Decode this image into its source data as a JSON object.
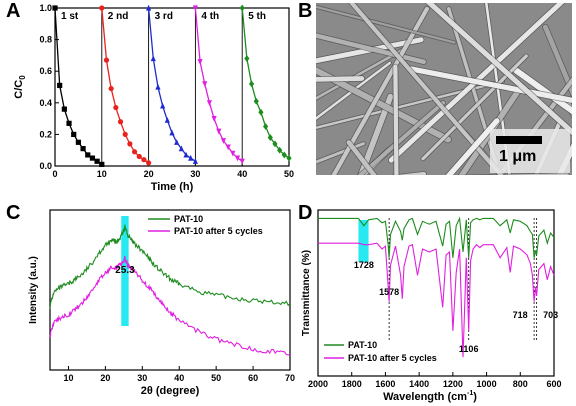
{
  "panels": {
    "a": "A",
    "b": "B",
    "c": "C",
    "d": "D"
  },
  "sem": {
    "scale_label": "1 μm",
    "background": "#8a8a8a"
  },
  "chart_data": [
    {
      "type": "line",
      "panel": "A",
      "xlabel": "Time (h)",
      "ylabel": "C/C",
      "ylabel_sub": "0",
      "xlim": [
        0,
        50
      ],
      "ylim": [
        0,
        1.0
      ],
      "xticks": [
        0,
        10,
        20,
        30,
        40,
        50
      ],
      "yticks": [
        0.0,
        0.2,
        0.4,
        0.6,
        0.8,
        1.0
      ],
      "cycle_boundaries": [
        10,
        20,
        30,
        40
      ],
      "series": [
        {
          "name": "1 st",
          "color": "#000000",
          "marker": "square",
          "x": [
            0,
            1,
            2,
            3,
            4,
            5,
            6,
            7,
            8,
            9,
            10
          ],
          "y": [
            1.0,
            0.51,
            0.36,
            0.27,
            0.2,
            0.15,
            0.11,
            0.07,
            0.05,
            0.03,
            0.01
          ]
        },
        {
          "name": "2 nd",
          "color": "#e8231f",
          "marker": "circle",
          "x": [
            10,
            11,
            12,
            13,
            14,
            15,
            16,
            17,
            18,
            19,
            20
          ],
          "y": [
            1.0,
            0.67,
            0.49,
            0.37,
            0.28,
            0.2,
            0.14,
            0.09,
            0.06,
            0.04,
            0.02
          ]
        },
        {
          "name": "3 rd",
          "color": "#1f2bd0",
          "marker": "triangle",
          "x": [
            20,
            21,
            22,
            23,
            24,
            25,
            26,
            27,
            28,
            29,
            30
          ],
          "y": [
            1.0,
            0.68,
            0.5,
            0.38,
            0.29,
            0.21,
            0.15,
            0.11,
            0.07,
            0.05,
            0.03
          ]
        },
        {
          "name": "4 th",
          "color": "#e020e0",
          "marker": "triangle-down",
          "x": [
            30,
            31,
            32,
            33,
            34,
            35,
            36,
            37,
            38,
            39,
            40
          ],
          "y": [
            1.0,
            0.66,
            0.52,
            0.4,
            0.3,
            0.22,
            0.16,
            0.12,
            0.08,
            0.05,
            0.03
          ]
        },
        {
          "name": "5 th",
          "color": "#1e8c1e",
          "marker": "diamond",
          "x": [
            40,
            41,
            42,
            43,
            44,
            45,
            46,
            47,
            48,
            49,
            50
          ],
          "y": [
            1.0,
            0.68,
            0.52,
            0.41,
            0.34,
            0.25,
            0.18,
            0.14,
            0.1,
            0.07,
            0.05
          ]
        }
      ]
    },
    {
      "type": "line",
      "panel": "C",
      "xlabel": "2θ (degree)",
      "ylabel": "Intensity (a.u.)",
      "xlim": [
        5,
        70
      ],
      "xticks": [
        10,
        20,
        30,
        40,
        50,
        60,
        70
      ],
      "annotation": "25.3",
      "highlight_x": [
        24.3,
        26.3
      ],
      "highlight_color": "#00e5f0",
      "series": [
        {
          "name": "PAT-10",
          "color": "#1e8c1e",
          "x": [
            5,
            6,
            8,
            10,
            12,
            14,
            16,
            18,
            20,
            22,
            23,
            24,
            25,
            25.3,
            26,
            27,
            28,
            30,
            32,
            34,
            36,
            38,
            40,
            45,
            50,
            55,
            60,
            65,
            70
          ],
          "y": [
            0.42,
            0.52,
            0.56,
            0.58,
            0.62,
            0.66,
            0.72,
            0.8,
            0.86,
            0.9,
            0.88,
            0.92,
            0.97,
            1.0,
            0.94,
            0.9,
            0.87,
            0.82,
            0.76,
            0.7,
            0.65,
            0.61,
            0.58,
            0.53,
            0.5,
            0.48,
            0.46,
            0.45,
            0.44
          ]
        },
        {
          "name": "PAT-10 after 5 cycles",
          "color": "#e020e0",
          "x": [
            5,
            6,
            8,
            10,
            12,
            14,
            16,
            18,
            20,
            22,
            23,
            24,
            25,
            25.3,
            26,
            27,
            28,
            30,
            32,
            34,
            36,
            38,
            40,
            45,
            50,
            55,
            60,
            65,
            70
          ],
          "y": [
            0.2,
            0.3,
            0.34,
            0.36,
            0.4,
            0.45,
            0.52,
            0.6,
            0.66,
            0.71,
            0.7,
            0.72,
            0.75,
            0.77,
            0.72,
            0.7,
            0.67,
            0.61,
            0.55,
            0.48,
            0.42,
            0.36,
            0.32,
            0.24,
            0.18,
            0.14,
            0.11,
            0.09,
            0.07
          ]
        }
      ]
    },
    {
      "type": "line",
      "panel": "D",
      "xlabel": "Wavelength (cm",
      "xlabel_sup": "-1",
      "xlabel_end": ")",
      "ylabel": "Transmittance (%)",
      "xlim": [
        2000,
        600
      ],
      "xticks": [
        2000,
        1800,
        1600,
        1400,
        1200,
        1000,
        800,
        600
      ],
      "highlight_x": [
        1760,
        1700
      ],
      "highlight_color": "#00e5f0",
      "dashed_markers": [
        1578,
        1106,
        718,
        703
      ],
      "annotations": [
        {
          "text": "1728",
          "x": 1728
        },
        {
          "text": "1578",
          "x": 1578
        },
        {
          "text": "1106",
          "x": 1106
        },
        {
          "text": "718",
          "x": 718
        },
        {
          "text": "703",
          "x": 703
        }
      ],
      "series": [
        {
          "name": "PAT-10",
          "color": "#1e8c1e",
          "x": [
            2000,
            1900,
            1800,
            1760,
            1728,
            1700,
            1650,
            1620,
            1600,
            1585,
            1578,
            1570,
            1540,
            1510,
            1500,
            1490,
            1460,
            1440,
            1410,
            1380,
            1340,
            1300,
            1260,
            1240,
            1220,
            1200,
            1180,
            1160,
            1140,
            1120,
            1106,
            1095,
            1080,
            1060,
            1040,
            1020,
            1000,
            960,
            920,
            880,
            860,
            840,
            800,
            760,
            740,
            728,
            718,
            710,
            703,
            690,
            660,
            640,
            620,
            600
          ],
          "y": [
            0.97,
            0.97,
            0.97,
            0.97,
            0.92,
            0.96,
            0.97,
            0.94,
            0.95,
            0.8,
            0.7,
            0.86,
            0.95,
            0.88,
            0.82,
            0.9,
            0.96,
            0.97,
            0.86,
            0.95,
            0.93,
            0.95,
            0.78,
            0.93,
            0.95,
            0.7,
            0.92,
            0.97,
            0.74,
            0.96,
            0.7,
            0.94,
            0.96,
            0.97,
            0.96,
            0.97,
            0.97,
            0.97,
            0.92,
            0.96,
            0.87,
            0.96,
            0.95,
            0.92,
            0.88,
            0.86,
            0.7,
            0.75,
            0.72,
            0.85,
            0.89,
            0.8,
            0.87,
            0.84
          ]
        },
        {
          "name": "PAT-10 after 5 cycles",
          "color": "#e020e0",
          "x": [
            2000,
            1900,
            1800,
            1760,
            1728,
            1700,
            1650,
            1620,
            1600,
            1585,
            1578,
            1570,
            1540,
            1510,
            1500,
            1490,
            1460,
            1440,
            1410,
            1380,
            1340,
            1300,
            1260,
            1240,
            1220,
            1200,
            1180,
            1160,
            1140,
            1120,
            1106,
            1095,
            1080,
            1060,
            1040,
            1020,
            1000,
            960,
            920,
            880,
            860,
            840,
            800,
            760,
            740,
            728,
            718,
            710,
            703,
            690,
            660,
            640,
            620,
            600
          ],
          "y": [
            0.8,
            0.8,
            0.8,
            0.8,
            0.79,
            0.79,
            0.8,
            0.76,
            0.78,
            0.52,
            0.4,
            0.65,
            0.78,
            0.58,
            0.42,
            0.64,
            0.78,
            0.79,
            0.58,
            0.76,
            0.74,
            0.76,
            0.36,
            0.72,
            0.74,
            0.2,
            0.6,
            0.76,
            0.02,
            0.7,
            0.2,
            0.68,
            0.76,
            0.79,
            0.77,
            0.79,
            0.79,
            0.79,
            0.7,
            0.77,
            0.6,
            0.78,
            0.76,
            0.72,
            0.66,
            0.58,
            0.4,
            0.5,
            0.44,
            0.62,
            0.66,
            0.55,
            0.64,
            0.58
          ]
        }
      ]
    }
  ]
}
